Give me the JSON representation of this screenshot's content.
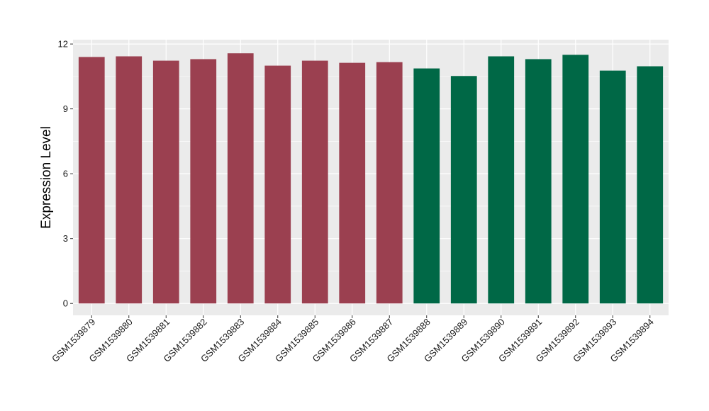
{
  "chart_data": {
    "type": "bar",
    "title": "",
    "xlabel": "",
    "ylabel": "Expression Level",
    "ylim": [
      -0.55,
      12.2
    ],
    "yticks": [
      0,
      3,
      6,
      9,
      12
    ],
    "grid": true,
    "legend": "none",
    "categories": [
      "GSM1539879",
      "GSM1539880",
      "GSM1539881",
      "GSM1539882",
      "GSM1539883",
      "GSM1539884",
      "GSM1539885",
      "GSM1539886",
      "GSM1539887",
      "GSM1539888",
      "GSM1539889",
      "GSM1539890",
      "GSM1539891",
      "GSM1539892",
      "GSM1539893",
      "GSM1539894"
    ],
    "values": [
      11.4,
      11.43,
      11.23,
      11.3,
      11.57,
      11.0,
      11.23,
      11.13,
      11.16,
      10.87,
      10.52,
      11.43,
      11.3,
      11.5,
      10.77,
      10.97
    ],
    "colors": [
      "#9b4050",
      "#9b4050",
      "#9b4050",
      "#9b4050",
      "#9b4050",
      "#9b4050",
      "#9b4050",
      "#9b4050",
      "#9b4050",
      "#006846",
      "#006846",
      "#006846",
      "#006846",
      "#006846",
      "#006846",
      "#006846"
    ],
    "panel_background": "#ebebeb",
    "grid_color": "#ffffff"
  }
}
